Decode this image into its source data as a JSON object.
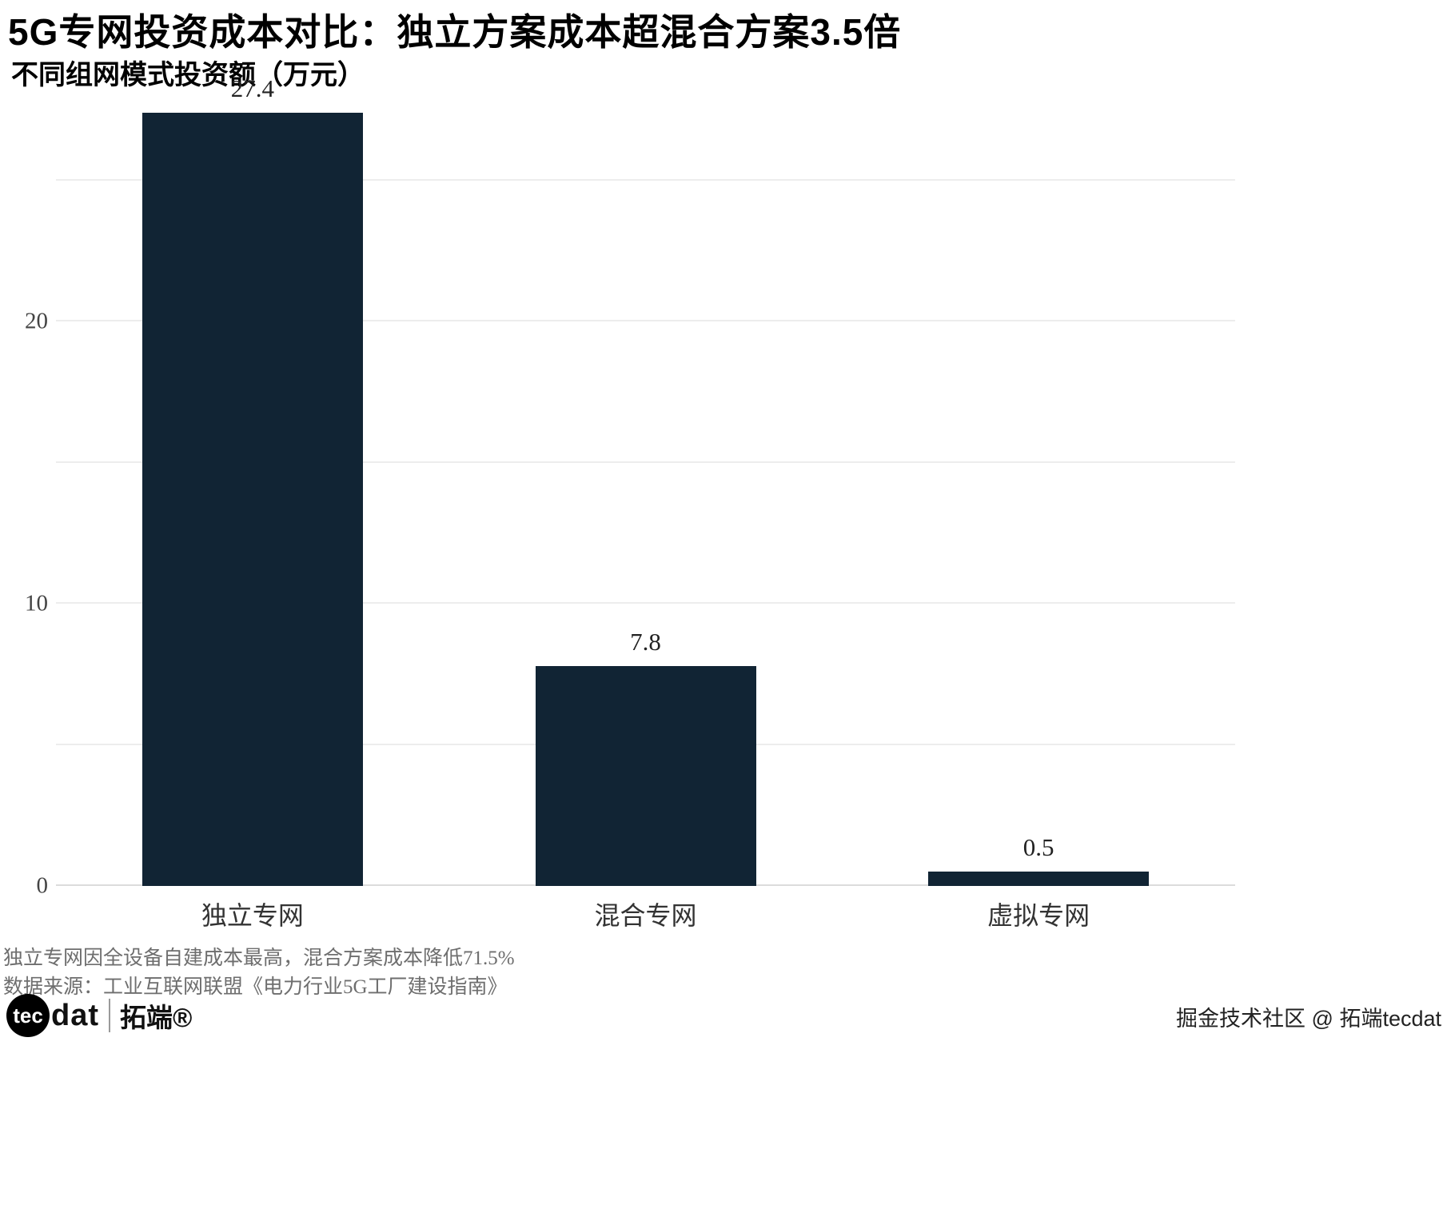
{
  "title": "5G专网投资成本对比：独立方案成本超混合方案3.5倍",
  "subtitle": "不同组网模式投资额（万元）",
  "chart_data": {
    "type": "bar",
    "title": "不同组网模式投资额（万元）",
    "categories": [
      "独立专网",
      "混合专网",
      "虚拟专网"
    ],
    "values": [
      27.4,
      7.8,
      0.5
    ],
    "value_labels": [
      "27.4",
      "7.8",
      "0.5"
    ],
    "xlabel": "",
    "ylabel": "",
    "ylim": [
      0,
      28
    ],
    "yticks": [
      0,
      10,
      20
    ],
    "gridlines": [
      0,
      5,
      10,
      15,
      20,
      25
    ],
    "grid": "on",
    "legend": "none",
    "bar_color": "#112434"
  },
  "footnotes": {
    "note": "独立专网因全设备自建成本最高，混合方案成本降低71.5%",
    "source": "数据来源：工业互联网联盟《电力行业5G工厂建设指南》"
  },
  "branding": {
    "logo_circle_text": "tec",
    "logo_rest_text": "dat",
    "logo_cn": "拓端®",
    "watermark": "掘金技术社区 @ 拓端tecdat"
  }
}
